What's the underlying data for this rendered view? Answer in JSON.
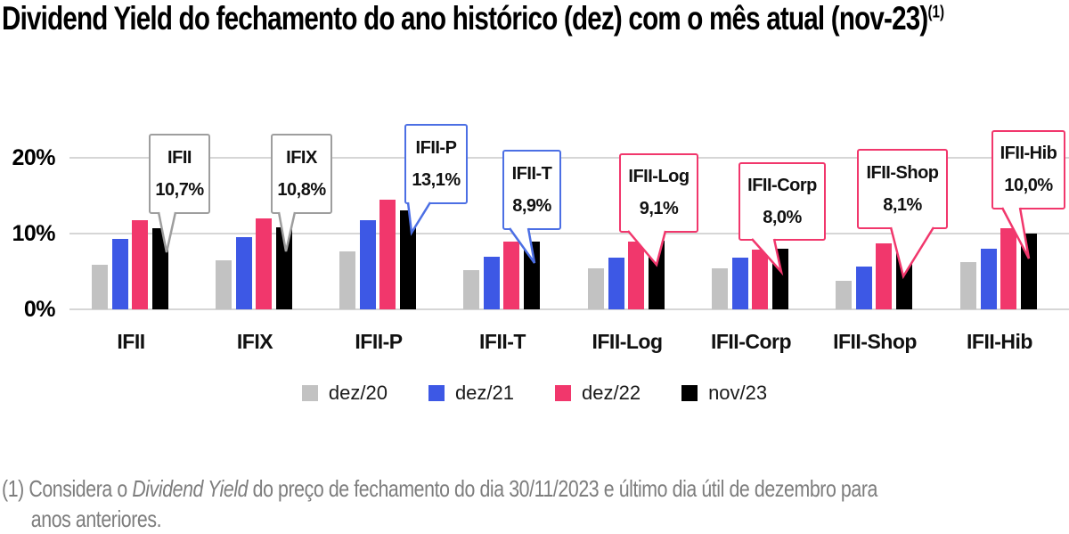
{
  "title": {
    "text": "Dividend Yield do fechamento do ano histórico (dez) com o mês atual (nov-23)",
    "superscript": "(1)"
  },
  "chart_data": {
    "type": "bar",
    "title": "Dividend Yield do fechamento do ano histórico (dez) com o mês atual (nov-23)",
    "categories": [
      "IFII",
      "IFIX",
      "IFII-P",
      "IFII-T",
      "IFII-Log",
      "IFII-Corp",
      "IFII-Shop",
      "IFII-Hib"
    ],
    "series": [
      {
        "name": "dez/20",
        "color": "#c2c2c2",
        "values": [
          5.9,
          6.5,
          7.7,
          5.2,
          5.4,
          5.4,
          3.8,
          6.2
        ]
      },
      {
        "name": "dez/21",
        "color": "#3d58e5",
        "values": [
          9.3,
          9.5,
          11.8,
          7.0,
          6.8,
          6.8,
          5.7,
          8.0
        ]
      },
      {
        "name": "dez/22",
        "color": "#f1376c",
        "values": [
          11.8,
          12.0,
          14.5,
          9.0,
          8.9,
          7.9,
          8.7,
          10.7
        ]
      },
      {
        "name": "nov/23",
        "color": "#000000",
        "values": [
          10.7,
          10.8,
          13.1,
          8.9,
          9.1,
          8.0,
          8.1,
          10.0
        ]
      }
    ],
    "y_ticks": [
      {
        "label": "20%",
        "value": 20
      },
      {
        "label": "10%",
        "value": 10
      },
      {
        "label": "0%",
        "value": 0
      }
    ],
    "ylim": [
      0,
      20
    ],
    "grid": true,
    "legend_position": "bottom",
    "callouts": [
      {
        "target": "IFII",
        "label": "IFII",
        "value": "10,7%",
        "color": "#9e9e9e"
      },
      {
        "target": "IFIX",
        "label": "IFIX",
        "value": "10,8%",
        "color": "#9e9e9e"
      },
      {
        "target": "IFII-P",
        "label": "IFII-P",
        "value": "13,1%",
        "color": "#4c6fe4"
      },
      {
        "target": "IFII-T",
        "label": "IFII-T",
        "value": "8,9%",
        "color": "#4c6fe4"
      },
      {
        "target": "IFII-Log",
        "label": "IFII-Log",
        "value": "9,1%",
        "color": "#f1376c"
      },
      {
        "target": "IFII-Corp",
        "label": "IFII-Corp",
        "value": "8,0%",
        "color": "#f1376c"
      },
      {
        "target": "IFII-Shop",
        "label": "IFII-Shop",
        "value": "8,1%",
        "color": "#f1376c"
      },
      {
        "target": "IFII-Hib",
        "label": "IFII-Hib",
        "value": "10,0%",
        "color": "#f1376c"
      }
    ]
  },
  "footnote": {
    "marker": "(1)",
    "line1_before": " Considera o ",
    "line1_italic": "Dividend Yield",
    "line1_after": " do preço de fechamento do dia 30/11/2023 e último dia  útil de dezembro para",
    "line2": "anos anteriores."
  }
}
